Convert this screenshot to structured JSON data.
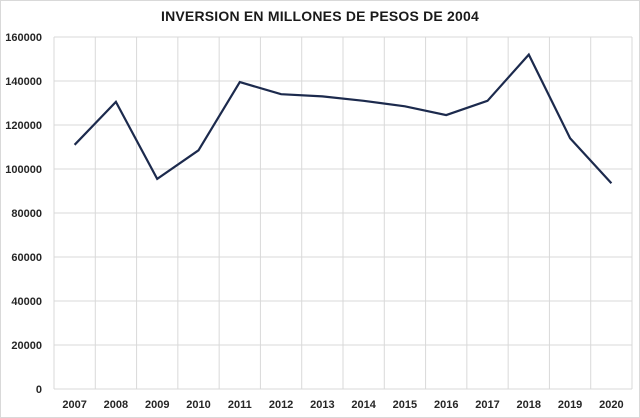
{
  "chart_data": {
    "type": "line",
    "title": "INVERSION  EN MILLONES DE PESOS DE 2004",
    "xlabel": "",
    "ylabel": "",
    "categories": [
      "2007",
      "2008",
      "2009",
      "2010",
      "2011",
      "2012",
      "2013",
      "2014",
      "2015",
      "2016",
      "2017",
      "2018",
      "2019",
      "2020"
    ],
    "series": [
      {
        "name": "Inversion",
        "color": "#1c2a4d",
        "values": [
          111000,
          130500,
          95500,
          108500,
          139500,
          134000,
          133000,
          131000,
          128500,
          124500,
          131000,
          152000,
          114000,
          93500
        ]
      }
    ],
    "ylim": [
      0,
      160000
    ],
    "yticks": [
      "0",
      "20000",
      "40000",
      "60000",
      "80000",
      "100000",
      "120000",
      "140000",
      "160000"
    ],
    "ytick_values": [
      0,
      20000,
      40000,
      60000,
      80000,
      100000,
      120000,
      140000,
      160000
    ],
    "grid": true,
    "legend": "none",
    "grid_color": "#d9d9d9"
  }
}
